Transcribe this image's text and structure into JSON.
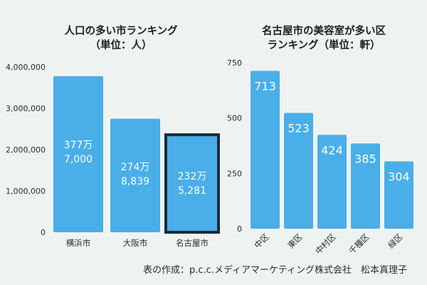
{
  "chart_data": [
    {
      "type": "bar",
      "title_lines": [
        "人口の多い市ランキング",
        "（単位：人）"
      ],
      "categories": [
        "横浜市",
        "大阪市",
        "名古屋市"
      ],
      "values": [
        3777000,
        2748839,
        2325281
      ],
      "bar_labels": [
        [
          "377万",
          "7,000"
        ],
        [
          "274万",
          "8,839"
        ],
        [
          "232万",
          "5,281"
        ]
      ],
      "highlight_index": 2,
      "ylim": [
        0,
        4000000
      ],
      "yticks": [
        "0",
        "1,000,000",
        "2,000,000",
        "3,000,000",
        "4,000,000"
      ],
      "grid": false
    },
    {
      "type": "bar",
      "title_lines": [
        "名古屋市の美容室が多い区",
        "ランキング（単位：軒）"
      ],
      "categories": [
        "中区",
        "東区",
        "中村区",
        "千種区",
        "緑区"
      ],
      "values": [
        713,
        523,
        424,
        385,
        304
      ],
      "bar_labels": [
        "713",
        "523",
        "424",
        "385",
        "304"
      ],
      "ylim": [
        0,
        750
      ],
      "yticks": [
        "0",
        "250",
        "500",
        "750"
      ],
      "grid": false
    }
  ],
  "colors": {
    "bar": "#4aaee8",
    "highlight_border": "#1c2b35",
    "label": "#ffffff",
    "axis": "#2a2a2a"
  },
  "credit": "表の作成：p.c.c.メディアマーケティング株式会社　松本真理子"
}
